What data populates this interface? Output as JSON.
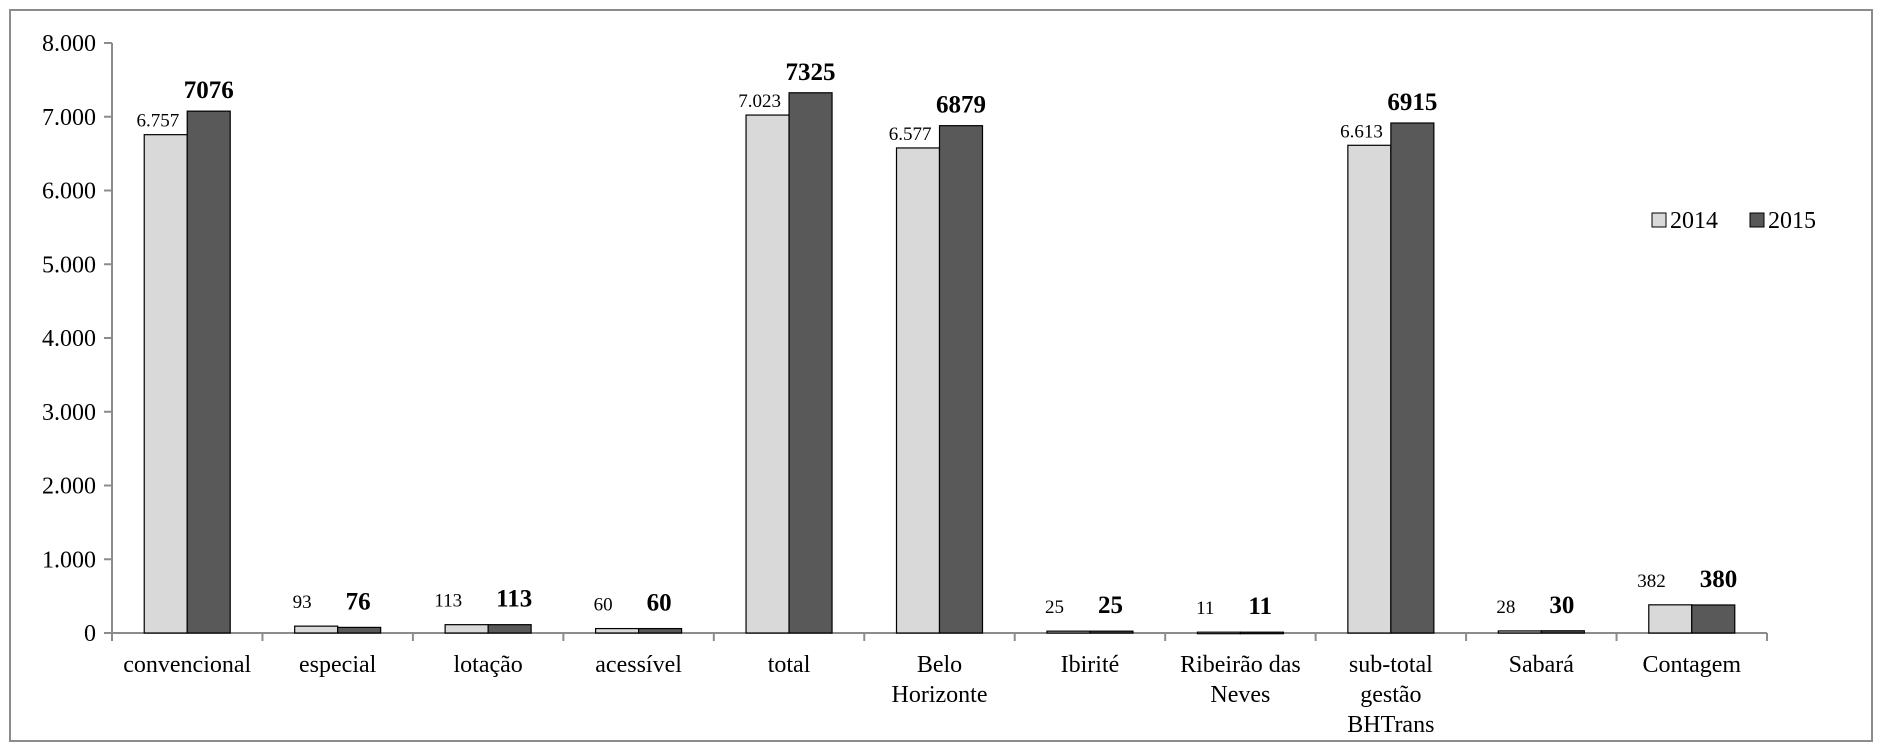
{
  "chart_data": {
    "type": "bar",
    "title": "",
    "xlabel": "",
    "ylabel": "",
    "ylim": [
      0,
      8000
    ],
    "yticks": [
      "0",
      "1.000",
      "2.000",
      "3.000",
      "4.000",
      "5.000",
      "6.000",
      "7.000",
      "8.000"
    ],
    "grid": false,
    "legend_position": "right",
    "categories": [
      [
        "convencional"
      ],
      [
        "especial"
      ],
      [
        "lotação"
      ],
      [
        "acessível"
      ],
      [
        "total"
      ],
      [
        "Belo",
        "Horizonte"
      ],
      [
        "Ibirité"
      ],
      [
        "Ribeirão das",
        "Neves"
      ],
      [
        "sub-total",
        "gestão",
        "BHTrans"
      ],
      [
        "Sabará"
      ],
      [
        "Contagem"
      ]
    ],
    "series": [
      {
        "name": "2014",
        "color": "#d9d9d9",
        "values": [
          6757,
          93,
          113,
          60,
          7023,
          6577,
          25,
          11,
          6613,
          28,
          382
        ],
        "labels": [
          "6.757",
          "93",
          "113",
          "60",
          "7.023",
          "6.577",
          "25",
          "11",
          "6.613",
          "28",
          "382"
        ]
      },
      {
        "name": "2015",
        "color": "#595959",
        "values": [
          7076,
          76,
          113,
          60,
          7325,
          6879,
          25,
          11,
          6915,
          30,
          380
        ],
        "labels": [
          "7076",
          "76",
          "113",
          "60",
          "7325",
          "6879",
          "25",
          "11",
          "6915",
          "30",
          "380"
        ]
      }
    ]
  }
}
